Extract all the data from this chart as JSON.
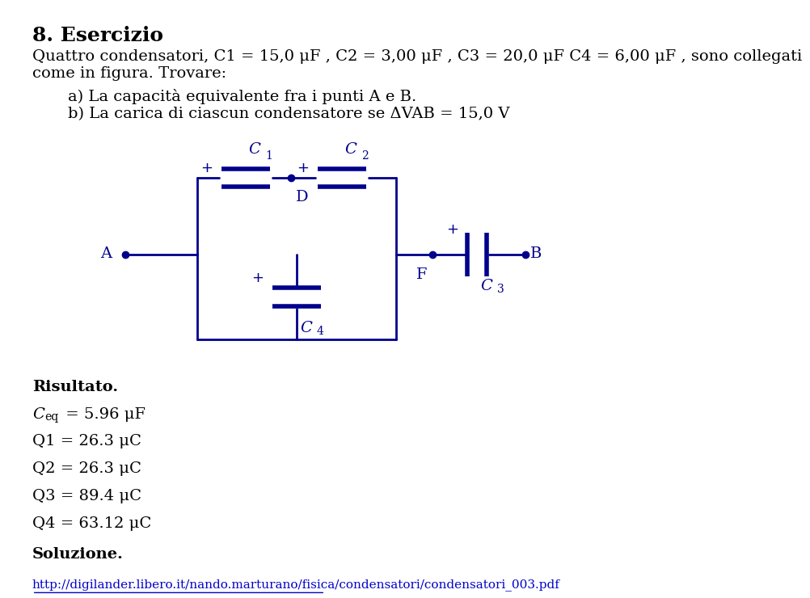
{
  "title": "8. Esercizio",
  "title_fontsize": 18,
  "text_color": "#000000",
  "blue_color": "#00008B",
  "background_color": "#ffffff",
  "intro_line1": "Quattro condensatori, C1 = 15,0 μF , C2 = 3,00 μF , C3 = 20,0 μF C4 = 6,00 μF , sono collegati",
  "intro_line2": "come in figura. Trovare:",
  "item_a": "a) La capacità equivalente fra i punti A e B.",
  "item_b": "b) La carica di ciascun condensatore se ΔVAB = 15,0 V",
  "risultato_label": "Risultato.",
  "ceq_text": "C_eq = 5.96 μF",
  "q1_text": "Q1 = 26.3 μC",
  "q2_text": "Q2 = 26.3 μC",
  "q3_text": "Q3 = 89.4 μC",
  "q4_text": "Q4 = 63.12 μC",
  "soluzione_label": "Soluzione.",
  "url_text": "http://digilander.libero.it/nando.marturano/fisica/condensatori/condensatori_003.pdf"
}
